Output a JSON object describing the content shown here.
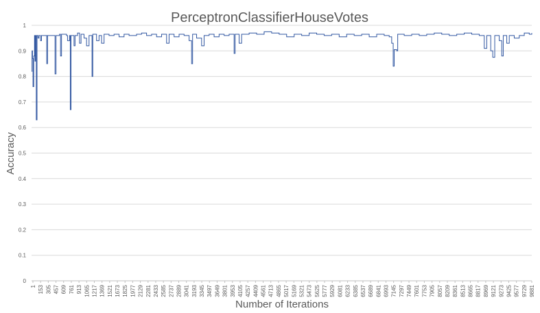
{
  "chart_data": {
    "type": "line",
    "title": "PerceptronClassifierHouseVotes",
    "xlabel": "Number of Iterations",
    "ylabel": "Accuracy",
    "ylim": [
      0,
      1
    ],
    "y_ticks": [
      "0",
      "0.1",
      "0.2",
      "0.3",
      "0.4",
      "0.5",
      "0.6",
      "0.7",
      "0.8",
      "0.9",
      "1"
    ],
    "x_tick_labels": [
      "1",
      "153",
      "305",
      "457",
      "609",
      "761",
      "913",
      "1065",
      "1217",
      "1369",
      "1521",
      "1673",
      "1825",
      "1977",
      "2129",
      "2281",
      "2433",
      "2585",
      "2737",
      "2889",
      "3041",
      "3193",
      "3345",
      "3497",
      "3649",
      "3801",
      "3953",
      "4105",
      "4257",
      "4409",
      "4561",
      "4713",
      "4865",
      "5017",
      "5169",
      "5321",
      "5473",
      "5625",
      "5777",
      "5929",
      "6081",
      "6233",
      "6385",
      "6537",
      "6689",
      "6841",
      "6993",
      "7145",
      "7297",
      "7449",
      "7601",
      "7753",
      "7905",
      "8057",
      "8209",
      "8361",
      "8513",
      "8665",
      "8817",
      "8969",
      "9121",
      "9273",
      "9425",
      "9577",
      "9729",
      "9881"
    ],
    "x_range": [
      1,
      10000
    ],
    "grid": true,
    "legend": "none",
    "series_color": "#2f55a0",
    "series": [
      {
        "points": [
          [
            1,
            0.82
          ],
          [
            10,
            0.9
          ],
          [
            20,
            0.87
          ],
          [
            30,
            0.76
          ],
          [
            45,
            0.88
          ],
          [
            60,
            0.96
          ],
          [
            70,
            0.86
          ],
          [
            80,
            0.96
          ],
          [
            95,
            0.63
          ],
          [
            110,
            0.96
          ],
          [
            130,
            0.95
          ],
          [
            150,
            0.96
          ],
          [
            180,
            0.94
          ],
          [
            200,
            0.96
          ],
          [
            260,
            0.96
          ],
          [
            290,
            0.96
          ],
          [
            305,
            0.85
          ],
          [
            320,
            0.96
          ],
          [
            400,
            0.96
          ],
          [
            450,
            0.96
          ],
          [
            470,
            0.81
          ],
          [
            490,
            0.96
          ],
          [
            560,
            0.965
          ],
          [
            580,
            0.88
          ],
          [
            600,
            0.965
          ],
          [
            700,
            0.96
          ],
          [
            720,
            0.94
          ],
          [
            760,
            0.96
          ],
          [
            775,
            0.67
          ],
          [
            790,
            0.96
          ],
          [
            850,
            0.92
          ],
          [
            870,
            0.96
          ],
          [
            900,
            0.96
          ],
          [
            920,
            0.97
          ],
          [
            960,
            0.93
          ],
          [
            990,
            0.965
          ],
          [
            1050,
            0.95
          ],
          [
            1100,
            0.92
          ],
          [
            1150,
            0.96
          ],
          [
            1200,
            0.96
          ],
          [
            1210,
            0.8
          ],
          [
            1225,
            0.965
          ],
          [
            1300,
            0.94
          ],
          [
            1350,
            0.96
          ],
          [
            1400,
            0.93
          ],
          [
            1450,
            0.965
          ],
          [
            1550,
            0.96
          ],
          [
            1650,
            0.965
          ],
          [
            1750,
            0.955
          ],
          [
            1850,
            0.965
          ],
          [
            1950,
            0.96
          ],
          [
            2100,
            0.965
          ],
          [
            2200,
            0.97
          ],
          [
            2300,
            0.96
          ],
          [
            2400,
            0.965
          ],
          [
            2500,
            0.955
          ],
          [
            2600,
            0.965
          ],
          [
            2700,
            0.93
          ],
          [
            2750,
            0.965
          ],
          [
            2850,
            0.955
          ],
          [
            2950,
            0.965
          ],
          [
            3050,
            0.96
          ],
          [
            3150,
            0.94
          ],
          [
            3200,
            0.85
          ],
          [
            3220,
            0.965
          ],
          [
            3300,
            0.95
          ],
          [
            3400,
            0.92
          ],
          [
            3450,
            0.96
          ],
          [
            3550,
            0.965
          ],
          [
            3650,
            0.955
          ],
          [
            3750,
            0.965
          ],
          [
            3850,
            0.96
          ],
          [
            3950,
            0.965
          ],
          [
            4050,
            0.89
          ],
          [
            4070,
            0.965
          ],
          [
            4150,
            0.93
          ],
          [
            4200,
            0.965
          ],
          [
            4350,
            0.97
          ],
          [
            4500,
            0.965
          ],
          [
            4650,
            0.975
          ],
          [
            4800,
            0.97
          ],
          [
            4950,
            0.965
          ],
          [
            5100,
            0.955
          ],
          [
            5250,
            0.965
          ],
          [
            5400,
            0.96
          ],
          [
            5550,
            0.97
          ],
          [
            5700,
            0.965
          ],
          [
            5850,
            0.96
          ],
          [
            6000,
            0.965
          ],
          [
            6150,
            0.955
          ],
          [
            6300,
            0.965
          ],
          [
            6450,
            0.96
          ],
          [
            6600,
            0.965
          ],
          [
            6750,
            0.955
          ],
          [
            6900,
            0.965
          ],
          [
            7050,
            0.96
          ],
          [
            7150,
            0.955
          ],
          [
            7200,
            0.93
          ],
          [
            7230,
            0.84
          ],
          [
            7250,
            0.905
          ],
          [
            7300,
            0.9
          ],
          [
            7320,
            0.965
          ],
          [
            7450,
            0.96
          ],
          [
            7600,
            0.965
          ],
          [
            7750,
            0.96
          ],
          [
            7900,
            0.965
          ],
          [
            8050,
            0.97
          ],
          [
            8200,
            0.965
          ],
          [
            8350,
            0.96
          ],
          [
            8500,
            0.965
          ],
          [
            8650,
            0.97
          ],
          [
            8800,
            0.965
          ],
          [
            8950,
            0.96
          ],
          [
            9050,
            0.91
          ],
          [
            9100,
            0.96
          ],
          [
            9180,
            0.9
          ],
          [
            9220,
            0.875
          ],
          [
            9260,
            0.96
          ],
          [
            9350,
            0.94
          ],
          [
            9400,
            0.88
          ],
          [
            9430,
            0.96
          ],
          [
            9500,
            0.93
          ],
          [
            9550,
            0.96
          ],
          [
            9650,
            0.95
          ],
          [
            9750,
            0.96
          ],
          [
            9850,
            0.97
          ],
          [
            9950,
            0.965
          ],
          [
            10000,
            0.97
          ]
        ]
      }
    ]
  }
}
